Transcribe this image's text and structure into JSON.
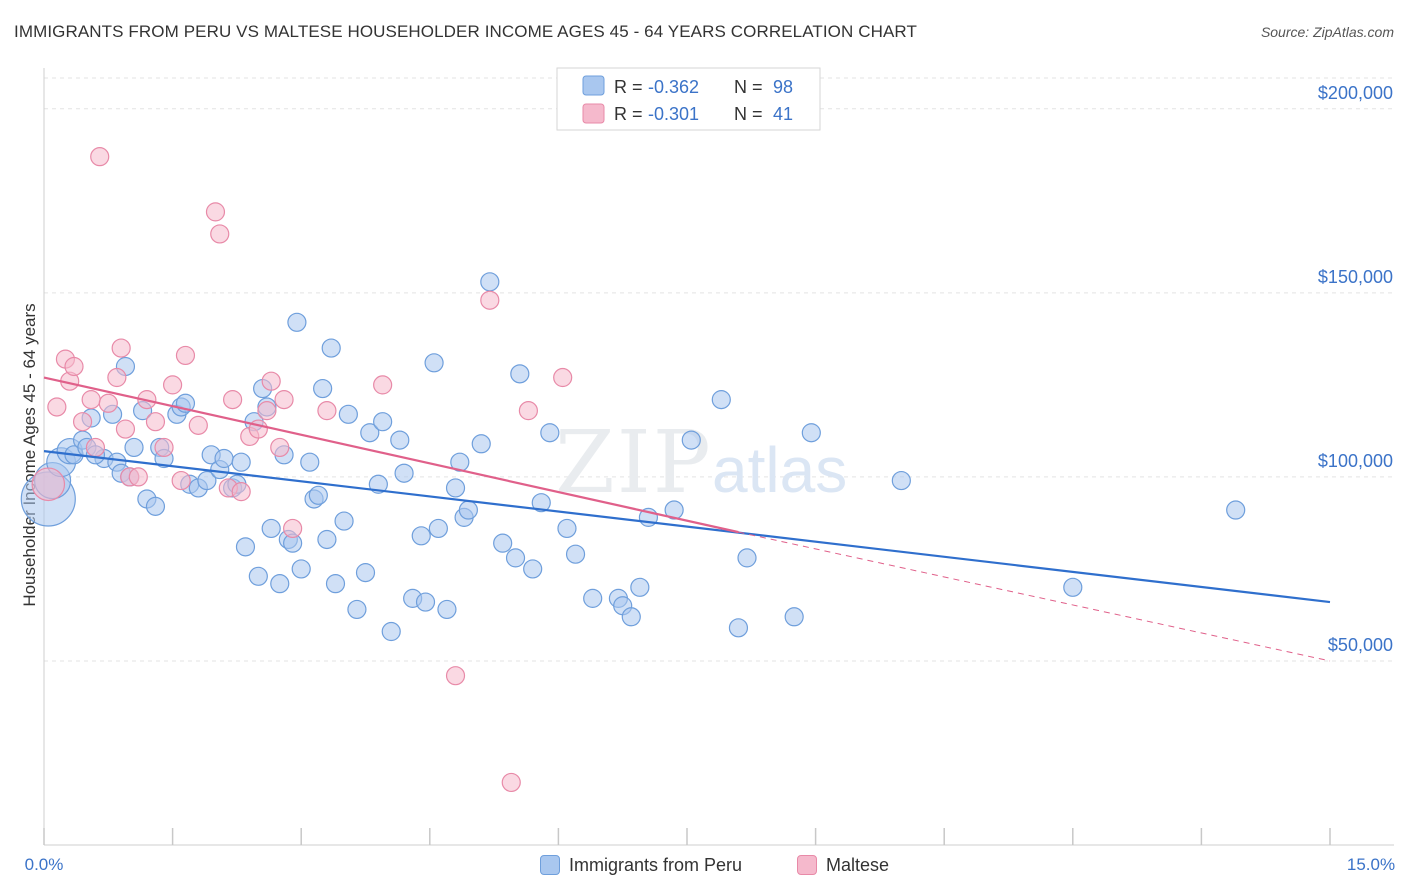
{
  "title": "IMMIGRANTS FROM PERU VS MALTESE HOUSEHOLDER INCOME AGES 45 - 64 YEARS CORRELATION CHART",
  "source": "Source: ZipAtlas.com",
  "watermark": {
    "zip": "ZIP",
    "atlas": "atlas"
  },
  "colors": {
    "blue_fill": "#a9c7ef",
    "blue_stroke": "#6f9fdc",
    "blue_line": "#2f6fcd",
    "pink_fill": "#f5b9cc",
    "pink_stroke": "#e88aa8",
    "pink_line": "#e0608a",
    "axis_text": "#3b73c8"
  },
  "legend": {
    "series1": {
      "r_label": "R =",
      "r_value": "-0.362",
      "n_label": "N =",
      "n_value": "98"
    },
    "series2": {
      "r_label": "R =",
      "r_value": "-0.301",
      "n_label": "N =",
      "n_value": "41"
    }
  },
  "chart_data": {
    "type": "scatter",
    "title": "IMMIGRANTS FROM PERU VS MALTESE HOUSEHOLDER INCOME AGES 45 - 64 YEARS CORRELATION CHART",
    "xlabel": "",
    "ylabel": "Householder Income Ages 45 - 64 years",
    "xlim": [
      0,
      15
    ],
    "ylim": [
      0,
      210000
    ],
    "x_tick_labels": [
      "0.0%",
      "15.0%"
    ],
    "y_ticks": [
      50000,
      100000,
      150000,
      200000
    ],
    "y_tick_labels": [
      "$50,000",
      "$100,000",
      "$150,000",
      "$200,000"
    ],
    "grid": true,
    "legend_position": "top-center",
    "series": [
      {
        "name": "Immigrants from Peru",
        "r": -0.362,
        "n": 98,
        "trend": {
          "x": [
            0,
            15
          ],
          "y": [
            107000,
            66000
          ]
        },
        "points": [
          {
            "x": 0.05,
            "y": 94000,
            "s": 3
          },
          {
            "x": 0.1,
            "y": 99000,
            "s": 2
          },
          {
            "x": 0.2,
            "y": 104000,
            "s": 1.6
          },
          {
            "x": 0.3,
            "y": 107000,
            "s": 1.4
          },
          {
            "x": 0.35,
            "y": 106000
          },
          {
            "x": 0.45,
            "y": 110000
          },
          {
            "x": 0.5,
            "y": 108000
          },
          {
            "x": 0.55,
            "y": 116000
          },
          {
            "x": 0.7,
            "y": 105000
          },
          {
            "x": 0.8,
            "y": 117000
          },
          {
            "x": 0.85,
            "y": 104000
          },
          {
            "x": 0.9,
            "y": 101000
          },
          {
            "x": 0.95,
            "y": 130000
          },
          {
            "x": 1.05,
            "y": 108000
          },
          {
            "x": 1.15,
            "y": 118000
          },
          {
            "x": 1.2,
            "y": 94000
          },
          {
            "x": 1.3,
            "y": 92000
          },
          {
            "x": 1.35,
            "y": 108000
          },
          {
            "x": 1.4,
            "y": 105000
          },
          {
            "x": 1.55,
            "y": 117000
          },
          {
            "x": 1.6,
            "y": 119000
          },
          {
            "x": 1.65,
            "y": 120000
          },
          {
            "x": 1.7,
            "y": 98000
          },
          {
            "x": 1.8,
            "y": 97000
          },
          {
            "x": 1.9,
            "y": 99000
          },
          {
            "x": 1.95,
            "y": 106000
          },
          {
            "x": 2.05,
            "y": 102000
          },
          {
            "x": 2.1,
            "y": 105000
          },
          {
            "x": 2.2,
            "y": 97000
          },
          {
            "x": 2.25,
            "y": 98000
          },
          {
            "x": 2.3,
            "y": 104000
          },
          {
            "x": 2.35,
            "y": 81000
          },
          {
            "x": 2.45,
            "y": 115000
          },
          {
            "x": 2.5,
            "y": 73000
          },
          {
            "x": 2.55,
            "y": 124000
          },
          {
            "x": 2.6,
            "y": 119000
          },
          {
            "x": 2.65,
            "y": 86000
          },
          {
            "x": 2.75,
            "y": 71000
          },
          {
            "x": 2.8,
            "y": 106000
          },
          {
            "x": 2.85,
            "y": 83000
          },
          {
            "x": 2.9,
            "y": 82000
          },
          {
            "x": 2.95,
            "y": 142000
          },
          {
            "x": 3.0,
            "y": 75000
          },
          {
            "x": 3.1,
            "y": 104000
          },
          {
            "x": 3.15,
            "y": 94000
          },
          {
            "x": 3.2,
            "y": 95000
          },
          {
            "x": 3.3,
            "y": 83000
          },
          {
            "x": 3.4,
            "y": 71000
          },
          {
            "x": 3.5,
            "y": 88000
          },
          {
            "x": 3.55,
            "y": 117000
          },
          {
            "x": 3.65,
            "y": 64000
          },
          {
            "x": 3.75,
            "y": 74000
          },
          {
            "x": 3.8,
            "y": 112000
          },
          {
            "x": 3.9,
            "y": 98000
          },
          {
            "x": 3.95,
            "y": 115000
          },
          {
            "x": 4.05,
            "y": 58000
          },
          {
            "x": 4.15,
            "y": 110000
          },
          {
            "x": 4.2,
            "y": 101000
          },
          {
            "x": 4.3,
            "y": 67000
          },
          {
            "x": 4.4,
            "y": 84000
          },
          {
            "x": 4.45,
            "y": 66000
          },
          {
            "x": 4.55,
            "y": 131000
          },
          {
            "x": 4.6,
            "y": 86000
          },
          {
            "x": 4.7,
            "y": 64000
          },
          {
            "x": 4.8,
            "y": 97000
          },
          {
            "x": 4.85,
            "y": 104000
          },
          {
            "x": 4.9,
            "y": 89000
          },
          {
            "x": 4.95,
            "y": 91000
          },
          {
            "x": 5.1,
            "y": 109000
          },
          {
            "x": 5.2,
            "y": 153000
          },
          {
            "x": 5.35,
            "y": 82000
          },
          {
            "x": 5.5,
            "y": 78000
          },
          {
            "x": 5.55,
            "y": 128000
          },
          {
            "x": 5.7,
            "y": 75000
          },
          {
            "x": 5.8,
            "y": 93000
          },
          {
            "x": 5.9,
            "y": 112000
          },
          {
            "x": 6.1,
            "y": 86000
          },
          {
            "x": 6.2,
            "y": 79000
          },
          {
            "x": 6.4,
            "y": 67000
          },
          {
            "x": 6.7,
            "y": 67000
          },
          {
            "x": 6.75,
            "y": 65000
          },
          {
            "x": 6.85,
            "y": 62000
          },
          {
            "x": 6.95,
            "y": 70000
          },
          {
            "x": 7.05,
            "y": 89000
          },
          {
            "x": 7.35,
            "y": 91000
          },
          {
            "x": 7.55,
            "y": 110000
          },
          {
            "x": 7.9,
            "y": 121000
          },
          {
            "x": 8.1,
            "y": 59000
          },
          {
            "x": 8.2,
            "y": 78000
          },
          {
            "x": 8.75,
            "y": 62000
          },
          {
            "x": 8.95,
            "y": 112000
          },
          {
            "x": 10.0,
            "y": 99000
          },
          {
            "x": 12.0,
            "y": 70000
          },
          {
            "x": 13.9,
            "y": 91000
          },
          {
            "x": 0.6,
            "y": 106000
          },
          {
            "x": 1.0,
            "y": 100000
          },
          {
            "x": 3.25,
            "y": 124000
          },
          {
            "x": 3.35,
            "y": 135000
          }
        ]
      },
      {
        "name": "Maltese",
        "r": -0.301,
        "n": 41,
        "trend": {
          "x": [
            0,
            8.1
          ],
          "y": [
            127000,
            85000
          ]
        },
        "trend_dashed": {
          "x": [
            8.1,
            15
          ],
          "y": [
            85000,
            50000
          ]
        },
        "points": [
          {
            "x": 0.05,
            "y": 98000,
            "s": 1.8
          },
          {
            "x": 0.15,
            "y": 119000
          },
          {
            "x": 0.25,
            "y": 132000
          },
          {
            "x": 0.3,
            "y": 126000
          },
          {
            "x": 0.35,
            "y": 130000
          },
          {
            "x": 0.45,
            "y": 115000
          },
          {
            "x": 0.55,
            "y": 121000
          },
          {
            "x": 0.6,
            "y": 108000
          },
          {
            "x": 0.65,
            "y": 187000
          },
          {
            "x": 0.75,
            "y": 120000
          },
          {
            "x": 0.85,
            "y": 127000
          },
          {
            "x": 0.9,
            "y": 135000
          },
          {
            "x": 0.95,
            "y": 113000
          },
          {
            "x": 1.0,
            "y": 100000
          },
          {
            "x": 1.1,
            "y": 100000
          },
          {
            "x": 1.2,
            "y": 121000
          },
          {
            "x": 1.3,
            "y": 115000
          },
          {
            "x": 1.4,
            "y": 108000
          },
          {
            "x": 1.5,
            "y": 125000
          },
          {
            "x": 1.6,
            "y": 99000
          },
          {
            "x": 1.65,
            "y": 133000
          },
          {
            "x": 1.8,
            "y": 114000
          },
          {
            "x": 2.0,
            "y": 172000
          },
          {
            "x": 2.05,
            "y": 166000
          },
          {
            "x": 2.15,
            "y": 97000
          },
          {
            "x": 2.2,
            "y": 121000
          },
          {
            "x": 2.3,
            "y": 96000
          },
          {
            "x": 2.4,
            "y": 111000
          },
          {
            "x": 2.5,
            "y": 113000
          },
          {
            "x": 2.6,
            "y": 118000
          },
          {
            "x": 2.65,
            "y": 126000
          },
          {
            "x": 2.75,
            "y": 108000
          },
          {
            "x": 2.8,
            "y": 121000
          },
          {
            "x": 2.9,
            "y": 86000
          },
          {
            "x": 3.3,
            "y": 118000
          },
          {
            "x": 3.95,
            "y": 125000
          },
          {
            "x": 4.8,
            "y": 46000
          },
          {
            "x": 5.2,
            "y": 148000
          },
          {
            "x": 5.45,
            "y": 17000
          },
          {
            "x": 5.65,
            "y": 118000
          },
          {
            "x": 6.05,
            "y": 127000
          }
        ]
      }
    ]
  },
  "bottom_legend": {
    "series1_label": "Immigrants from Peru",
    "series2_label": "Maltese"
  }
}
